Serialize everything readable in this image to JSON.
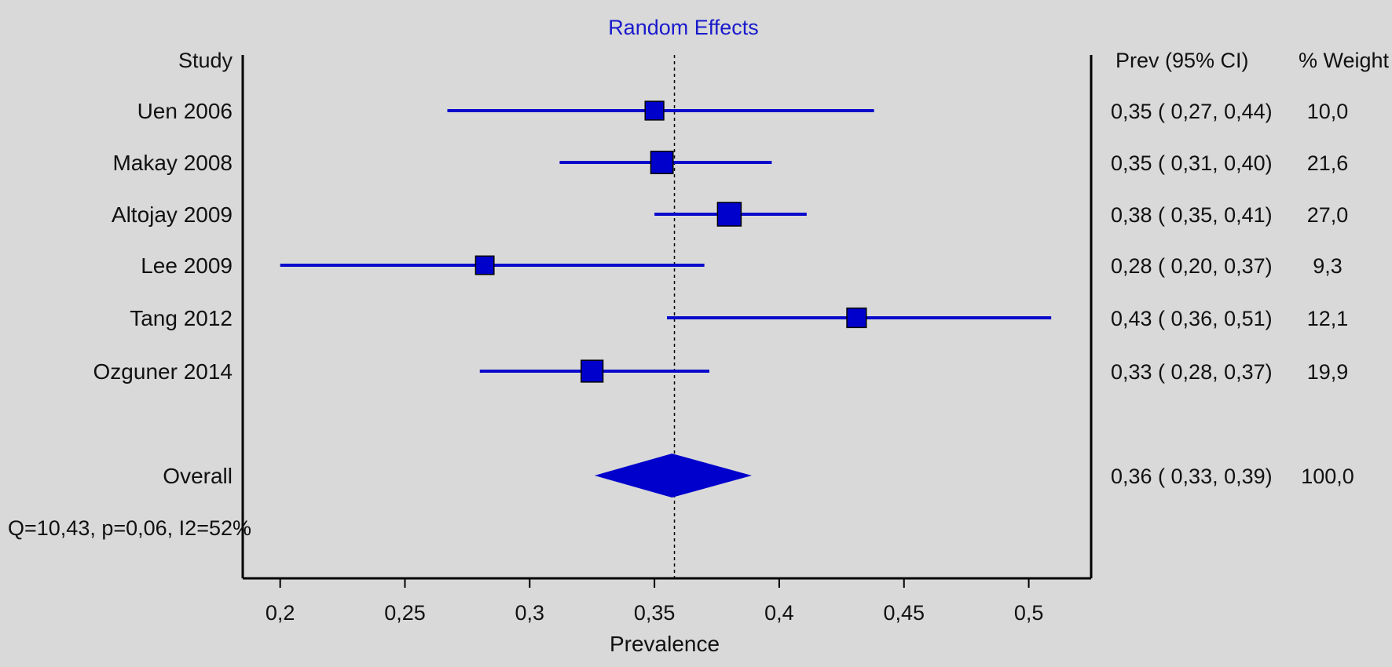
{
  "chart_data": {
    "type": "forest",
    "title": "Random Effects",
    "xlabel": "Prevalence",
    "xlim": [
      0.185,
      0.525
    ],
    "x_ticks": [
      0.2,
      0.25,
      0.3,
      0.35,
      0.4,
      0.45,
      0.5
    ],
    "x_tick_labels": [
      "0,2",
      "0,25",
      "0,3",
      "0,35",
      "0,4",
      "0,45",
      "0,5"
    ],
    "reference_line": 0.358,
    "reference_line_style": "dotted",
    "headers": {
      "study": "Study",
      "estimate": "Prev (95% CI)",
      "weight": "% Weight"
    },
    "studies": [
      {
        "name": "Uen 2006",
        "estimate": 0.35,
        "lower": 0.267,
        "upper": 0.438,
        "weight": 10.0,
        "estimate_label": "0,35",
        "lower_label": "0,27",
        "upper_label": "0,44",
        "weight_label": "10,0"
      },
      {
        "name": "Makay 2008",
        "estimate": 0.353,
        "lower": 0.312,
        "upper": 0.397,
        "weight": 21.6,
        "estimate_label": "0,35",
        "lower_label": "0,31",
        "upper_label": "0,40",
        "weight_label": "21,6"
      },
      {
        "name": "Altojay 2009",
        "estimate": 0.38,
        "lower": 0.35,
        "upper": 0.411,
        "weight": 27.0,
        "estimate_label": "0,38",
        "lower_label": "0,35",
        "upper_label": "0,41",
        "weight_label": "27,0"
      },
      {
        "name": "Lee 2009",
        "estimate": 0.282,
        "lower": 0.2,
        "upper": 0.37,
        "weight": 9.3,
        "estimate_label": "0,28",
        "lower_label": "0,20",
        "upper_label": "0,37",
        "weight_label": "9,3"
      },
      {
        "name": "Tang 2012",
        "estimate": 0.431,
        "lower": 0.355,
        "upper": 0.509,
        "weight": 12.1,
        "estimate_label": "0,43",
        "lower_label": "0,36",
        "upper_label": "0,51",
        "weight_label": "12,1"
      },
      {
        "name": "Ozguner 2014",
        "estimate": 0.325,
        "lower": 0.28,
        "upper": 0.372,
        "weight": 19.9,
        "estimate_label": "0,33",
        "lower_label": "0,28",
        "upper_label": "0,37",
        "weight_label": "19,9"
      }
    ],
    "overall": {
      "name": "Overall",
      "estimate": 0.357,
      "lower": 0.326,
      "upper": 0.389,
      "estimate_label": "0,36",
      "lower_label": "0,33",
      "upper_label": "0,39",
      "weight_label": "100,0"
    },
    "heterogeneity": "Q=10,43, p=0,06, I2=52%",
    "colors": {
      "marker": "#0000cc",
      "line": "#0a0acc",
      "title": "#1a1acc",
      "text": "#111111",
      "axis": "#000000",
      "background": "#d9d9d9"
    }
  }
}
